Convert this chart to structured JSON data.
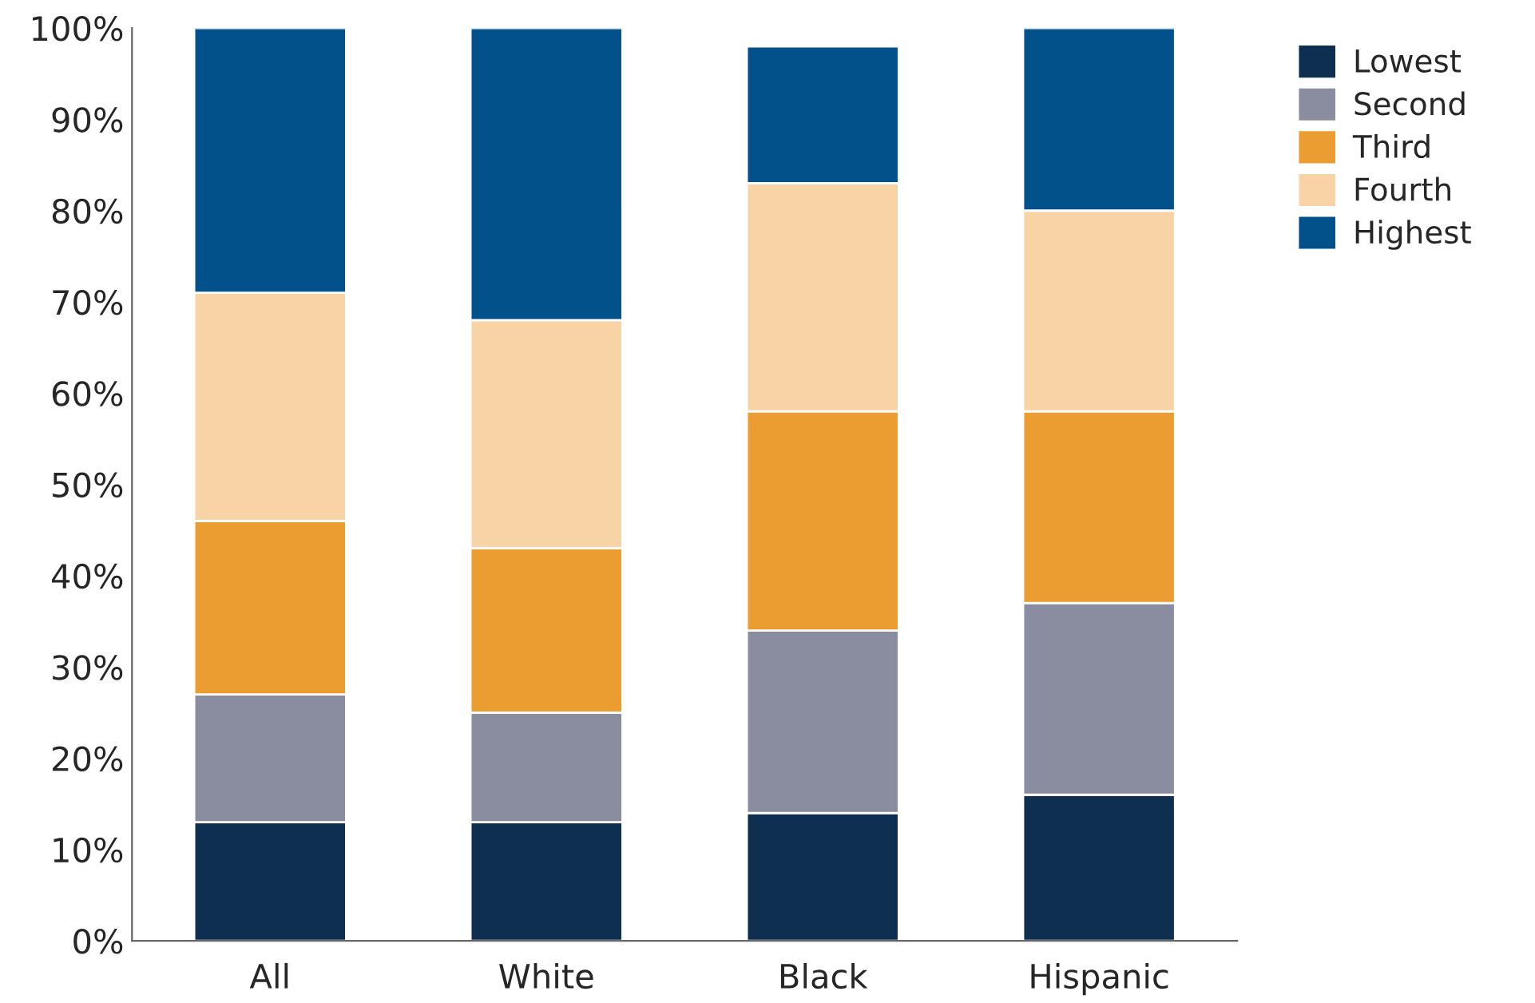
{
  "chart_data": {
    "type": "bar",
    "stacked": true,
    "categories": [
      "All",
      "White",
      "Black",
      "Hispanic"
    ],
    "series": [
      {
        "name": "Lowest",
        "color": "#0e2f50",
        "values": [
          13,
          13,
          14,
          16
        ]
      },
      {
        "name": "Second",
        "color": "#8a8ca0",
        "values": [
          14,
          12,
          20,
          21
        ]
      },
      {
        "name": "Third",
        "color": "#ec9d32",
        "values": [
          19,
          18,
          24,
          21
        ]
      },
      {
        "name": "Fourth",
        "color": "#f7d3a6",
        "values": [
          25,
          25,
          25,
          22
        ]
      },
      {
        "name": "Highest",
        "color": "#02518a",
        "values": [
          29,
          32,
          15,
          20
        ]
      }
    ],
    "ylim": [
      0,
      100
    ],
    "yticks": [
      {
        "value": 0,
        "label": "0%"
      },
      {
        "value": 10,
        "label": "10%"
      },
      {
        "value": 20,
        "label": "20%"
      },
      {
        "value": 30,
        "label": "30%"
      },
      {
        "value": 40,
        "label": "40%"
      },
      {
        "value": 50,
        "label": "50%"
      },
      {
        "value": 60,
        "label": "60%"
      },
      {
        "value": 70,
        "label": "70%"
      },
      {
        "value": 80,
        "label": "80%"
      },
      {
        "value": 90,
        "label": "90%"
      },
      {
        "value": 100,
        "label": "100%"
      }
    ],
    "grid": false,
    "legend": "top right"
  }
}
